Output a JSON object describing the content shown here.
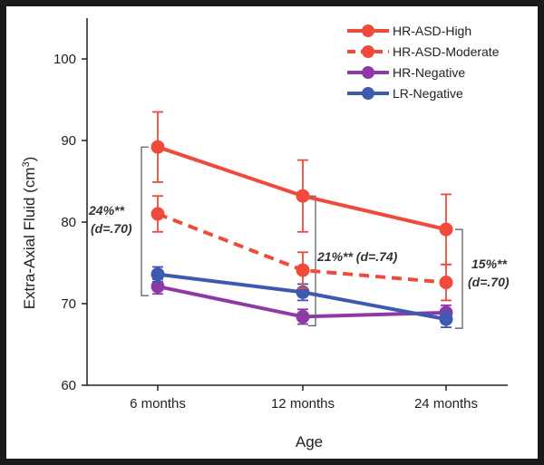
{
  "chart_data": {
    "type": "line",
    "categories": [
      "6 months",
      "12 months",
      "24 months"
    ],
    "xlabel": "Age",
    "ylabel": "Extra-Axial Fluid (cm",
    "ylabel_sup": "3",
    "ylabel_close": ")",
    "ylim": [
      60,
      105
    ],
    "yticks": [
      "60",
      "70",
      "80",
      "90",
      "100"
    ],
    "grid": false,
    "legend_position": "top-right",
    "series": [
      {
        "name": "HR-ASD-High",
        "color": "#f04a3a",
        "dashed": false,
        "values": [
          89.2,
          83.2,
          79.1
        ],
        "err": [
          4.3,
          4.4,
          4.3
        ]
      },
      {
        "name": "HR-ASD-Moderate",
        "color": "#f04a3a",
        "dashed": true,
        "values": [
          81.0,
          74.1,
          72.6
        ],
        "err": [
          2.2,
          2.2,
          2.2
        ]
      },
      {
        "name": "HR-Negative",
        "color": "#8e3aa6",
        "dashed": false,
        "values": [
          72.1,
          68.4,
          68.9
        ],
        "err": [
          0.9,
          0.9,
          0.9
        ]
      },
      {
        "name": "LR-Negative",
        "color": "#3d5ab0",
        "dashed": false,
        "values": [
          73.6,
          71.4,
          68.1
        ],
        "err": [
          0.9,
          1.0,
          1.0
        ]
      }
    ],
    "annotations": [
      {
        "line1": "24%**",
        "line2": "(d=.70)"
      },
      {
        "line1": "21%** (d=.74)",
        "line2": ""
      },
      {
        "line1": "15%**",
        "line2": "(d=.70)"
      }
    ]
  }
}
